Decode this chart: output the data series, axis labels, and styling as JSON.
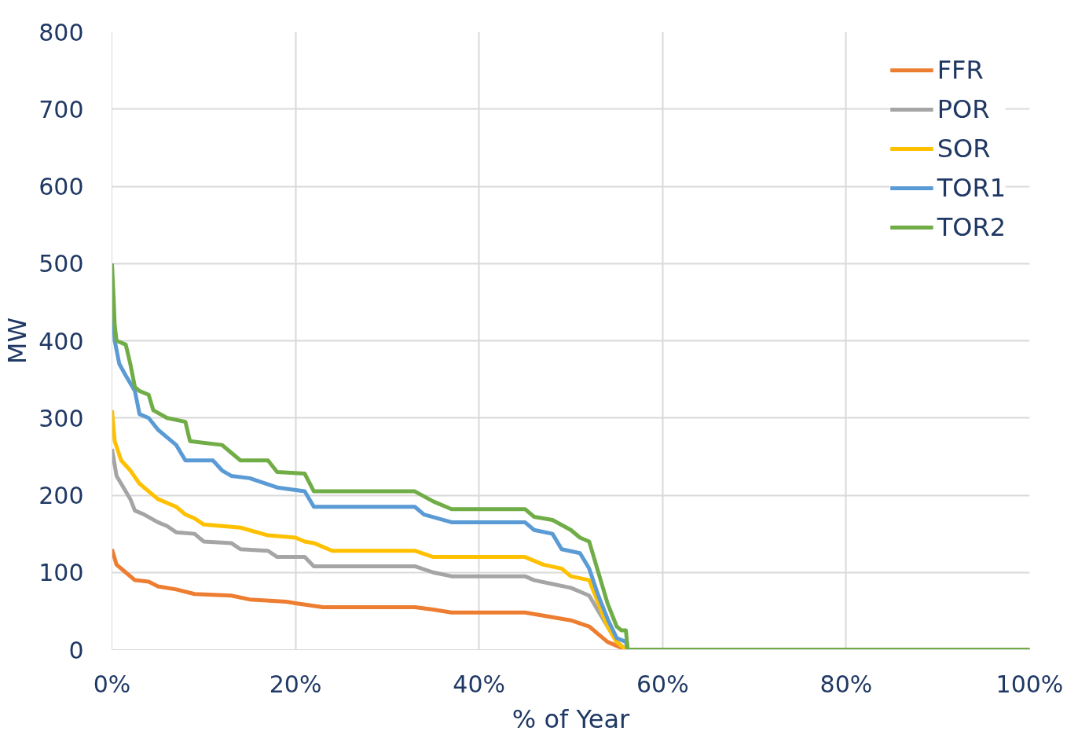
{
  "chart_data": {
    "type": "line",
    "xlabel": "% of Year",
    "ylabel": "MW",
    "xlim": [
      0,
      100
    ],
    "ylim": [
      0,
      800
    ],
    "xticks": [
      {
        "value": 0,
        "label": "0%"
      },
      {
        "value": 20,
        "label": "20%"
      },
      {
        "value": 40,
        "label": "40%"
      },
      {
        "value": 60,
        "label": "60%"
      },
      {
        "value": 80,
        "label": "80%"
      },
      {
        "value": 100,
        "label": "100%"
      }
    ],
    "yticks": [
      0,
      100,
      200,
      300,
      400,
      500,
      600,
      700,
      800
    ],
    "grid": true,
    "legend": "top right",
    "series": [
      {
        "name": "FFR",
        "color": "#ed7d31",
        "x": [
          0,
          0.5,
          1.5,
          2.5,
          4,
          5,
          7,
          9,
          13,
          15,
          19,
          20,
          23,
          33,
          35,
          37,
          45,
          47,
          50,
          52,
          53,
          54,
          55,
          56,
          100
        ],
        "values": [
          130,
          110,
          100,
          90,
          88,
          82,
          78,
          72,
          70,
          65,
          62,
          60,
          55,
          55,
          52,
          48,
          48,
          44,
          38,
          30,
          20,
          10,
          5,
          0,
          0
        ]
      },
      {
        "name": "POR",
        "color": "#a5a5a5",
        "x": [
          0,
          0.5,
          1,
          2,
          2.5,
          3.5,
          5,
          6,
          7,
          9,
          10,
          13,
          14,
          17,
          18,
          21,
          22,
          33,
          35,
          37,
          45,
          46,
          48,
          50,
          51,
          52,
          53,
          54,
          55,
          56,
          100
        ],
        "values": [
          260,
          225,
          215,
          195,
          180,
          175,
          165,
          160,
          152,
          150,
          140,
          138,
          130,
          128,
          120,
          120,
          108,
          108,
          100,
          95,
          95,
          90,
          85,
          80,
          75,
          70,
          50,
          30,
          10,
          0,
          0
        ]
      },
      {
        "name": "SOR",
        "color": "#ffc000",
        "x": [
          0,
          0.3,
          1,
          2,
          3,
          4,
          5,
          7,
          8,
          9,
          10,
          14,
          17,
          20,
          21,
          22,
          24,
          33,
          35,
          45,
          47,
          49,
          50,
          52,
          53,
          54,
          55,
          56,
          100
        ],
        "values": [
          310,
          270,
          245,
          232,
          215,
          205,
          195,
          185,
          175,
          170,
          162,
          158,
          148,
          145,
          140,
          138,
          128,
          128,
          120,
          120,
          110,
          105,
          95,
          90,
          60,
          30,
          10,
          0,
          0
        ]
      },
      {
        "name": "TOR1",
        "color": "#5b9bd5",
        "x": [
          0,
          0.3,
          0.8,
          1.5,
          2.5,
          3,
          4,
          5,
          6,
          7,
          8,
          11,
          12,
          13,
          15,
          18,
          21,
          22,
          33,
          34,
          37,
          45,
          46,
          48,
          49,
          51,
          52,
          53,
          54,
          55,
          56,
          56.2,
          100
        ],
        "values": [
          470,
          400,
          370,
          355,
          335,
          305,
          300,
          285,
          275,
          265,
          245,
          245,
          232,
          225,
          222,
          210,
          205,
          185,
          185,
          175,
          165,
          165,
          155,
          150,
          130,
          125,
          105,
          70,
          40,
          15,
          10,
          0,
          0
        ]
      },
      {
        "name": "TOR2",
        "color": "#70ad47",
        "x": [
          0,
          0.2,
          0.3,
          0.5,
          1.5,
          2,
          2.5,
          3,
          4,
          4.5,
          6,
          8,
          8.5,
          12,
          13,
          14,
          17,
          18,
          21,
          22,
          33,
          35,
          37,
          45,
          46,
          48,
          50,
          51,
          52,
          52.5,
          53,
          54,
          55,
          55.5,
          56,
          56.2,
          100
        ],
        "values": [
          500,
          450,
          420,
          400,
          395,
          370,
          340,
          335,
          330,
          310,
          300,
          295,
          270,
          265,
          255,
          245,
          245,
          230,
          228,
          205,
          205,
          192,
          182,
          182,
          172,
          168,
          155,
          145,
          140,
          120,
          100,
          60,
          30,
          25,
          25,
          0,
          0
        ]
      }
    ]
  }
}
